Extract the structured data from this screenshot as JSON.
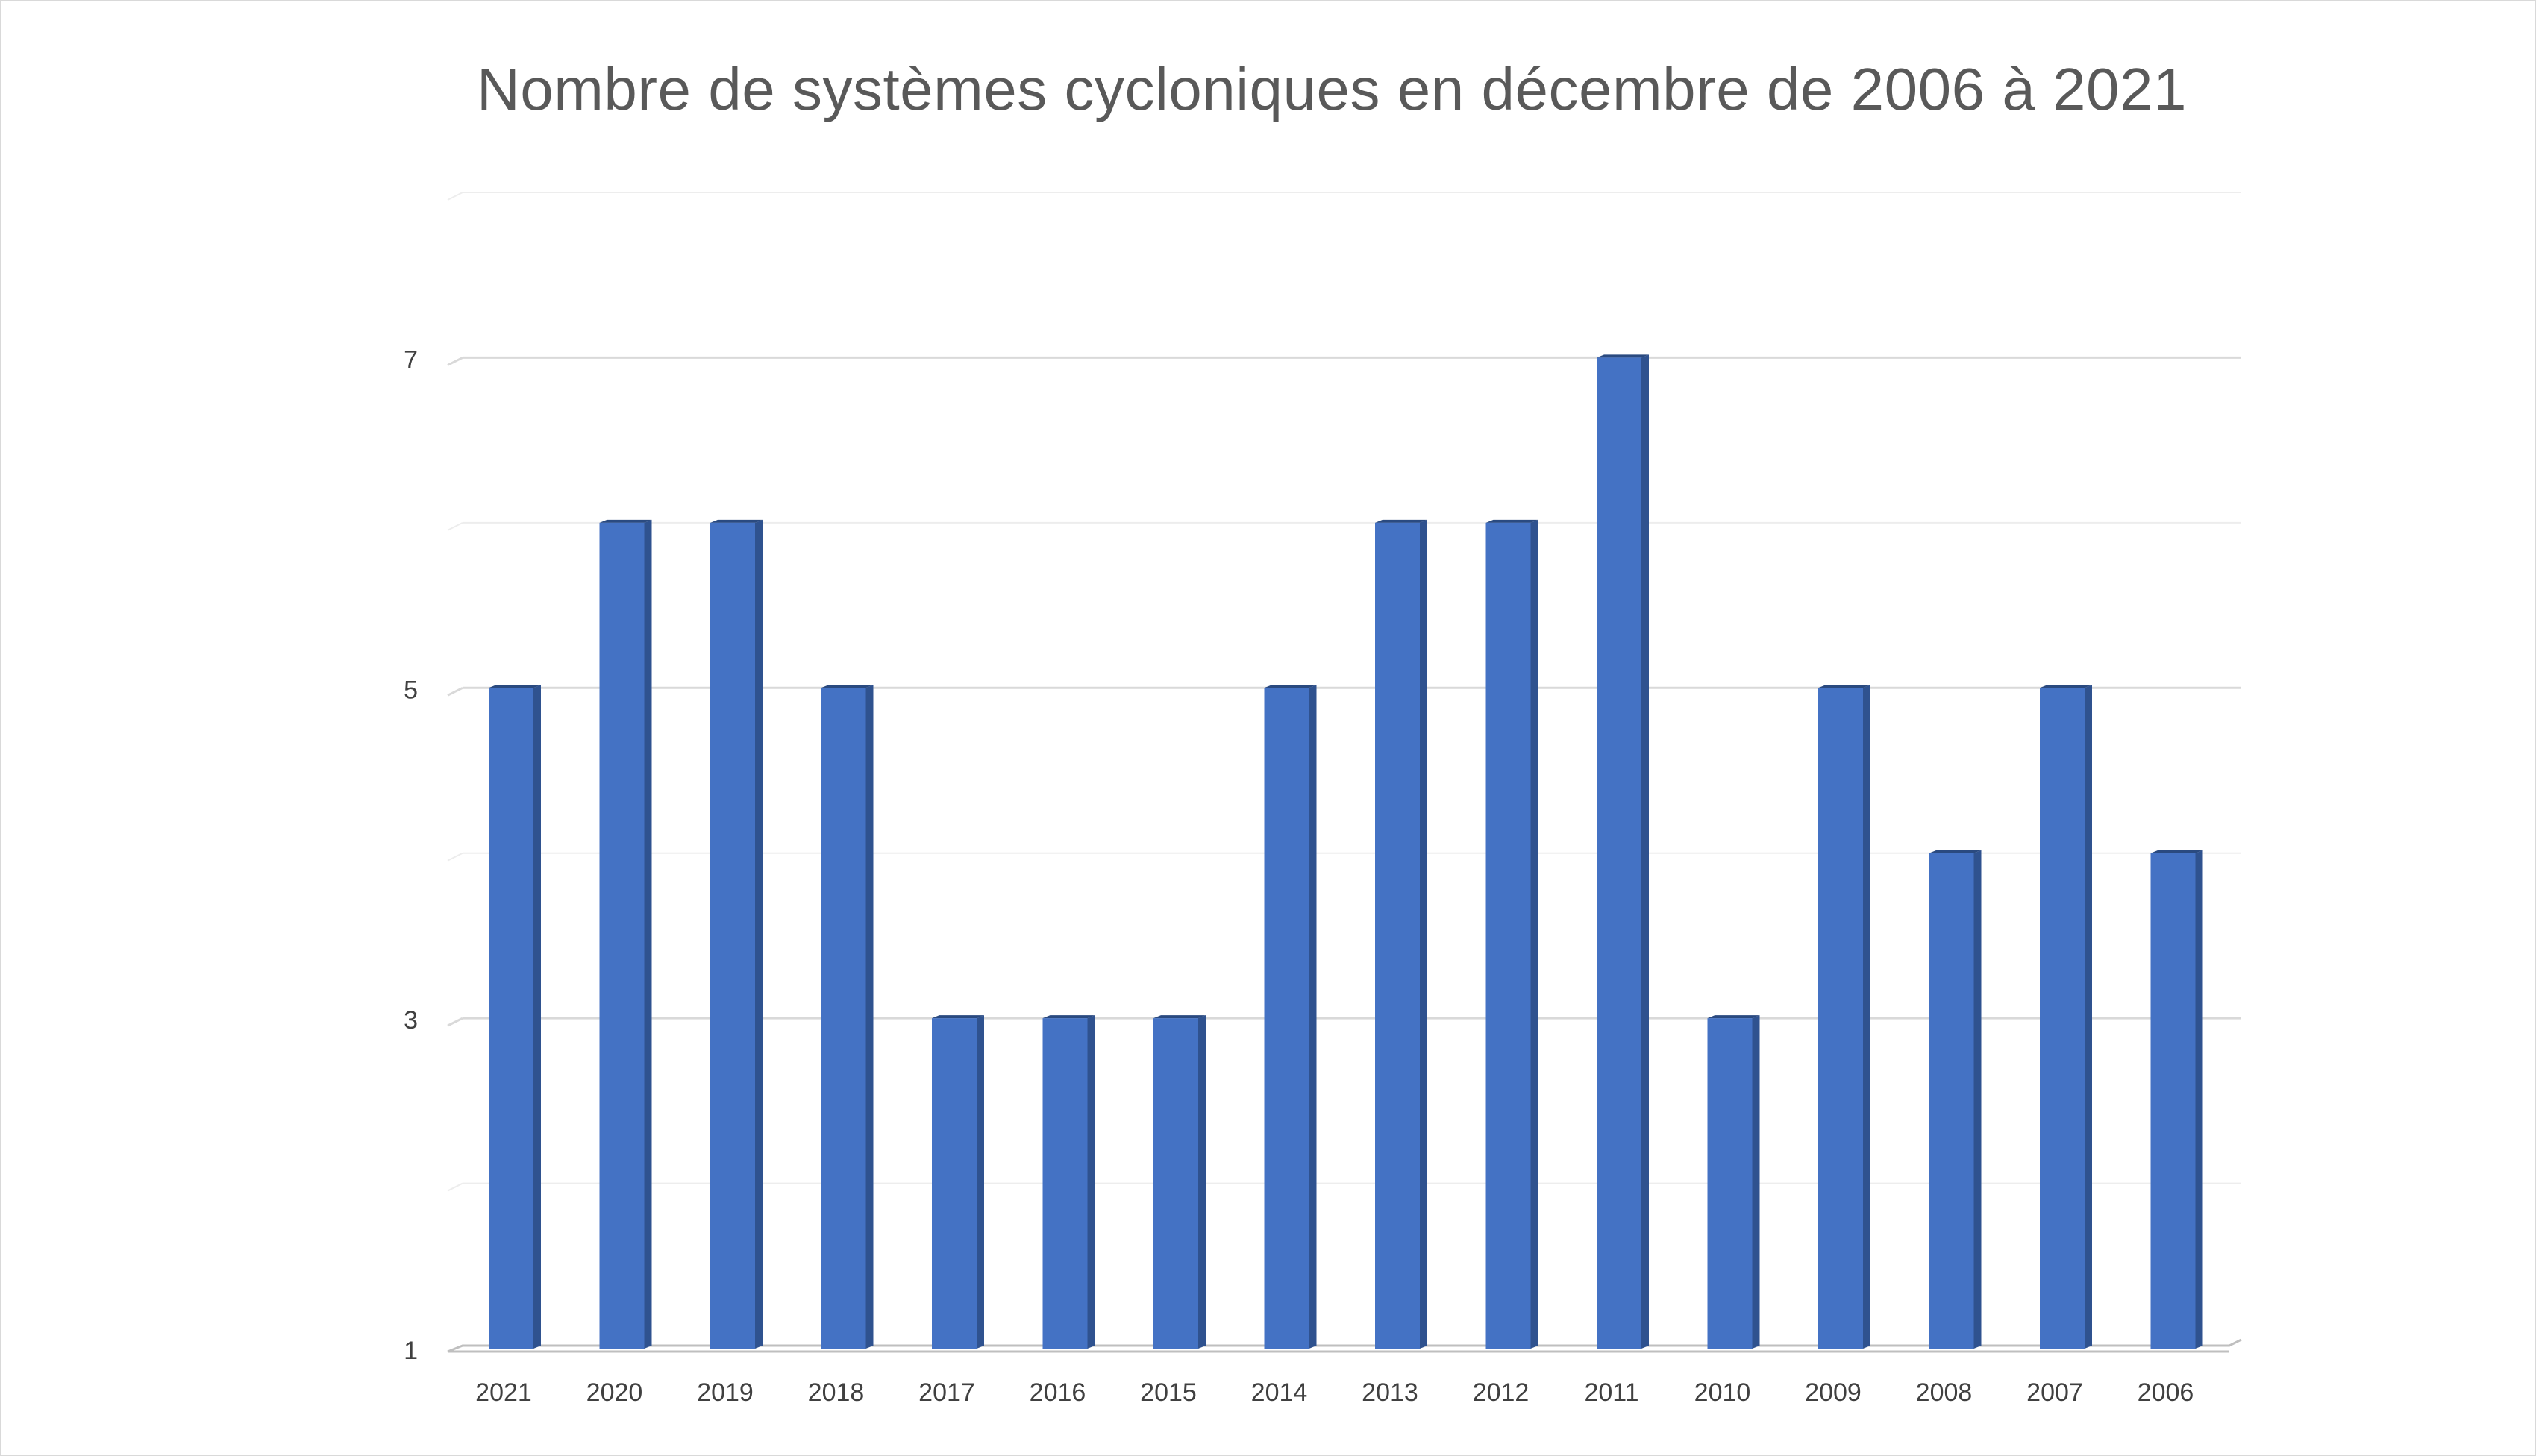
{
  "chart_data": {
    "type": "bar",
    "title": "Nombre de systèmes cycloniques en décembre de 2006 à 2021",
    "xlabel": "",
    "ylabel": "",
    "categories": [
      "2021",
      "2020",
      "2019",
      "2018",
      "2017",
      "2016",
      "2015",
      "2014",
      "2013",
      "2012",
      "2011",
      "2010",
      "2009",
      "2008",
      "2007",
      "2006"
    ],
    "values": [
      5,
      6,
      6,
      5,
      3,
      3,
      3,
      5,
      6,
      6,
      7,
      3,
      5,
      4,
      5,
      4
    ],
    "ylim": [
      1,
      8
    ],
    "yticks": [
      "1",
      "3",
      "5",
      "7"
    ],
    "grid": true,
    "legend": "none",
    "colors": {
      "bar_front": "#4472c4",
      "bar_side": "#2f528f",
      "bar_top": "#2a4a80",
      "major_grid": "#d9d9d9",
      "minor_grid": "#ededed",
      "axis_line": "#bfbfbf"
    }
  }
}
